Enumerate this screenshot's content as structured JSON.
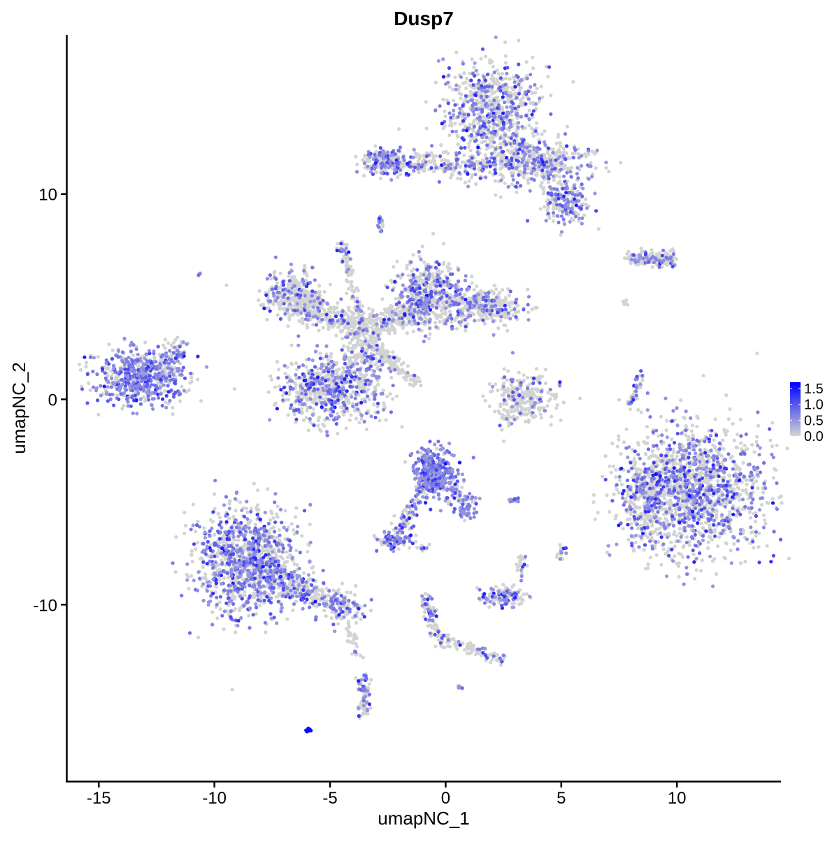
{
  "chart_data": {
    "type": "scatter",
    "title": "Dusp7",
    "xlabel": "umapNC_1",
    "ylabel": "umapNC_2",
    "xlim": [
      -16.4,
      14.5
    ],
    "ylim": [
      -18.6,
      17.75
    ],
    "xticks": [
      -15,
      -10,
      -5,
      0,
      5,
      10
    ],
    "xtick_labels": [
      "-15",
      "-10",
      "-5",
      "0",
      "5",
      "10"
    ],
    "yticks": [
      -10,
      0,
      10
    ],
    "ytick_labels": [
      "-10",
      "0",
      "10"
    ],
    "grid": false,
    "legend": {
      "placement": "right",
      "type": "colorbar",
      "ticks": [
        0.0,
        0.5,
        1.0,
        1.5
      ],
      "tick_labels": [
        "0.0",
        "0.5",
        "1.0",
        "1.5"
      ],
      "range": [
        0,
        1.7
      ],
      "low_color": "#D3D3D3",
      "high_color": "#0000FF"
    },
    "note_on_points": "approximate cell groups in UMAP units; expr = fraction of cells expressing",
    "groups": [
      {
        "shape": "blob",
        "cx": 2.0,
        "cy": 14.1,
        "sx": 1.0,
        "sy": 1.1,
        "n": 700,
        "expr": 0.35
      },
      {
        "shape": "blob",
        "cx": 3.8,
        "cy": 11.5,
        "sx": 1.2,
        "sy": 0.55,
        "n": 450,
        "expr": 0.3
      },
      {
        "shape": "blob",
        "cx": 5.2,
        "cy": 9.6,
        "sx": 0.5,
        "sy": 0.6,
        "n": 200,
        "expr": 0.45
      },
      {
        "shape": "line",
        "x0": -3.3,
        "y0": 11.6,
        "x1": 1.8,
        "y1": 11.3,
        "w": 0.3,
        "n": 300,
        "expr": 0.35
      },
      {
        "shape": "blob",
        "cx": -2.6,
        "cy": 11.6,
        "sx": 0.4,
        "sy": 0.3,
        "n": 120,
        "expr": 0.4
      },
      {
        "shape": "blob",
        "cx": -13.2,
        "cy": 1.1,
        "sx": 0.95,
        "sy": 0.65,
        "n": 600,
        "expr": 0.65
      },
      {
        "shape": "line",
        "x0": -12.0,
        "y0": 1.8,
        "x1": -11.3,
        "y1": 2.8,
        "w": 0.25,
        "n": 60,
        "expr": 0.5
      },
      {
        "shape": "blob",
        "cx": -6.6,
        "cy": 5.1,
        "sx": 0.6,
        "sy": 0.6,
        "n": 300,
        "expr": 0.25
      },
      {
        "shape": "line",
        "x0": -6.0,
        "y0": 4.5,
        "x1": -3.5,
        "y1": 3.4,
        "w": 0.35,
        "n": 250,
        "expr": 0.15
      },
      {
        "shape": "blob",
        "cx": -0.8,
        "cy": 5.2,
        "sx": 0.7,
        "sy": 0.8,
        "n": 450,
        "expr": 0.35
      },
      {
        "shape": "blob",
        "cx": 1.5,
        "cy": 4.5,
        "sx": 0.9,
        "sy": 0.45,
        "n": 350,
        "expr": 0.3
      },
      {
        "shape": "line",
        "x0": -3.5,
        "y0": 3.4,
        "x1": -1.0,
        "y1": 4.5,
        "w": 0.35,
        "n": 250,
        "expr": 0.15
      },
      {
        "shape": "line",
        "x0": -4.4,
        "y0": 7.2,
        "x1": -3.6,
        "y1": 3.5,
        "w": 0.12,
        "n": 90,
        "expr": 0.1
      },
      {
        "shape": "line",
        "x0": -3.5,
        "y0": 3.0,
        "x1": -1.2,
        "y1": 0.7,
        "w": 0.15,
        "n": 120,
        "expr": 0.05
      },
      {
        "shape": "blob",
        "cx": -5.0,
        "cy": 0.5,
        "sx": 1.1,
        "sy": 0.85,
        "n": 650,
        "expr": 0.35
      },
      {
        "shape": "blob",
        "cx": -3.6,
        "cy": 2.0,
        "sx": 0.5,
        "sy": 0.6,
        "n": 150,
        "expr": 0.2
      },
      {
        "shape": "blob",
        "cx": 3.3,
        "cy": 0.0,
        "sx": 0.7,
        "sy": 0.6,
        "n": 280,
        "expr": 0.15
      },
      {
        "shape": "line",
        "x0": 8.0,
        "y0": 6.9,
        "x1": 9.9,
        "y1": 6.8,
        "w": 0.18,
        "n": 180,
        "expr": 0.3
      },
      {
        "shape": "blob",
        "cx": 10.6,
        "cy": -4.4,
        "sx": 1.5,
        "sy": 1.55,
        "n": 1600,
        "expr": 0.35
      },
      {
        "shape": "blob",
        "cx": 8.6,
        "cy": -5.0,
        "sx": 0.4,
        "sy": 1.0,
        "n": 150,
        "expr": 0.35
      },
      {
        "shape": "blob",
        "cx": -8.6,
        "cy": -7.9,
        "sx": 1.1,
        "sy": 1.3,
        "n": 1100,
        "expr": 0.45
      },
      {
        "shape": "line",
        "x0": -7.4,
        "y0": -8.7,
        "x1": -4.0,
        "y1": -10.3,
        "w": 0.35,
        "n": 350,
        "expr": 0.4
      },
      {
        "shape": "blob",
        "cx": -0.5,
        "cy": -3.6,
        "sx": 0.45,
        "sy": 0.6,
        "n": 350,
        "expr": 0.8
      },
      {
        "shape": "line",
        "x0": 0.2,
        "y0": -4.2,
        "x1": 1.1,
        "y1": -5.6,
        "w": 0.25,
        "n": 90,
        "expr": 0.6
      },
      {
        "shape": "line",
        "x0": -1.0,
        "y0": -4.4,
        "x1": -2.1,
        "y1": -6.6,
        "w": 0.15,
        "n": 70,
        "expr": 0.5
      },
      {
        "shape": "blob",
        "cx": -2.2,
        "cy": -6.9,
        "sx": 0.35,
        "sy": 0.18,
        "n": 100,
        "expr": 0.55
      },
      {
        "shape": "blob",
        "cx": 2.4,
        "cy": -9.6,
        "sx": 0.5,
        "sy": 0.25,
        "n": 140,
        "expr": 0.4
      },
      {
        "shape": "line",
        "x0": -0.9,
        "y0": -9.5,
        "x1": -0.2,
        "y1": -12.0,
        "w": 0.15,
        "n": 80,
        "expr": 0.3
      },
      {
        "shape": "line",
        "x0": -0.2,
        "y0": -11.6,
        "x1": 2.6,
        "y1": -12.8,
        "w": 0.15,
        "n": 90,
        "expr": 0.2
      },
      {
        "shape": "line",
        "x0": -3.6,
        "y0": -13.5,
        "x1": -3.5,
        "y1": -15.3,
        "w": 0.15,
        "n": 80,
        "expr": 0.3
      },
      {
        "shape": "line",
        "x0": -4.2,
        "y0": -11.0,
        "x1": -3.8,
        "y1": -12.5,
        "w": 0.12,
        "n": 30,
        "expr": 0.1
      },
      {
        "shape": "blob",
        "cx": -5.95,
        "cy": -16.1,
        "sx": 0.06,
        "sy": 0.04,
        "n": 12,
        "expr": 1.0,
        "high": true
      },
      {
        "shape": "line",
        "x0": 8.0,
        "y0": -0.3,
        "x1": 8.4,
        "y1": 1.2,
        "w": 0.1,
        "n": 50,
        "expr": 0.3
      },
      {
        "shape": "blob",
        "cx": -4.5,
        "cy": 7.4,
        "sx": 0.1,
        "sy": 0.15,
        "n": 20,
        "expr": 0.6
      },
      {
        "shape": "blob",
        "cx": -2.8,
        "cy": 8.6,
        "sx": 0.1,
        "sy": 0.2,
        "n": 15,
        "expr": 0.4
      },
      {
        "shape": "blob",
        "cx": 5.0,
        "cy": -7.4,
        "sx": 0.12,
        "sy": 0.2,
        "n": 20,
        "expr": 0.3
      },
      {
        "shape": "blob",
        "cx": 3.3,
        "cy": -8.0,
        "sx": 0.1,
        "sy": 0.25,
        "n": 20,
        "expr": 0.2
      },
      {
        "shape": "blob",
        "cx": 2.9,
        "cy": -4.9,
        "sx": 0.15,
        "sy": 0.05,
        "n": 15,
        "expr": 0.7
      },
      {
        "shape": "blob",
        "cx": 0.6,
        "cy": -14.0,
        "sx": 0.05,
        "sy": 0.05,
        "n": 6,
        "expr": 0.8
      },
      {
        "shape": "blob",
        "cx": -1.0,
        "cy": -7.3,
        "sx": 0.1,
        "sy": 0.1,
        "n": 8,
        "expr": 0.4
      },
      {
        "shape": "blob",
        "cx": -10.6,
        "cy": 6.1,
        "sx": 0.04,
        "sy": 0.04,
        "n": 4,
        "expr": 0.5
      },
      {
        "shape": "blob",
        "cx": 7.8,
        "cy": 4.7,
        "sx": 0.1,
        "sy": 0.1,
        "n": 6,
        "expr": 0.0
      }
    ]
  }
}
